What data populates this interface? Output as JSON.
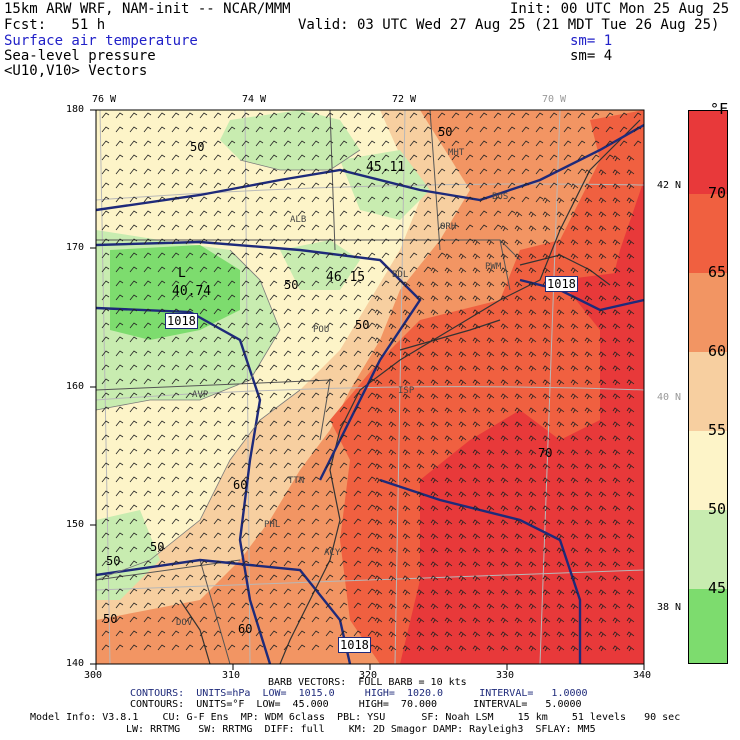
{
  "header": {
    "model": "15km ARW WRF, NAM-init -- NCAR/MMM",
    "init": "Init: 00 UTC Mon 25 Aug 25",
    "fcst": "Fcst:   51 h",
    "valid": "Valid: 03 UTC Wed 27 Aug 25 (21 MDT Tue 26 Aug 25)",
    "fields": [
      {
        "name": "Surface air temperature",
        "sm": "sm= 1"
      },
      {
        "name": "Sea-level pressure",
        "sm": "sm= 4"
      },
      {
        "name": "<U10,V10> Vectors",
        "sm": ""
      }
    ]
  },
  "map": {
    "lon_labels": [
      "76 W",
      "74 W",
      "72 W",
      "70 W"
    ],
    "lat_labels": [
      "42 N",
      "40 N",
      "38 N"
    ],
    "x_ticks": [
      "300",
      "310",
      "320",
      "330",
      "340"
    ],
    "y_ticks": [
      "180",
      "170",
      "160",
      "150",
      "140"
    ],
    "pressure_labels": [
      "1018",
      "1018",
      "1018"
    ],
    "temp_contour_labels": [
      "50",
      "50",
      "50",
      "50",
      "60",
      "60",
      "70",
      "50",
      "50",
      "50"
    ],
    "minima_labels": [
      "40.74",
      "45.11",
      "46.15"
    ],
    "station_labels": [
      "ALB",
      "BDL",
      "MHT",
      "BOS",
      "ORH",
      "PWM",
      "POU",
      "AVP",
      "ISP",
      "TTN",
      "PHL",
      "ACY",
      "DOV"
    ],
    "low_marker": "L"
  },
  "colorbar": {
    "unit": "°F",
    "levels": [
      "70",
      "65",
      "60",
      "55",
      "50",
      "45"
    ],
    "colors": [
      "#e8393a",
      "#f06040",
      "#f29563",
      "#f7cfa0",
      "#fdf4c8",
      "#c8ecb0",
      "#7ddc6e"
    ]
  },
  "footer": {
    "barb": "BARB VECTORS:  FULL BARB = 10 kts",
    "contours1": "CONTOURS:  UNITS=hPa  LOW=  1015.0     HIGH=  1020.0      INTERVAL=   1.0000",
    "contours2": "CONTOURS:  UNITS=°F  LOW=  45.000     HIGH=  70.000      INTERVAL=   5.0000",
    "info1": "Model Info: V3.8.1    CU: G-F Ens  MP: WDM 6class  PBL: YSU      SF: Noah LSM    15 km    51 levels   90 sec",
    "info2": "LW: RRTMG   SW: RRTMG  DIFF: full    KM: 2D Smagor DAMP: Rayleigh3  SFLAY: MM5"
  }
}
